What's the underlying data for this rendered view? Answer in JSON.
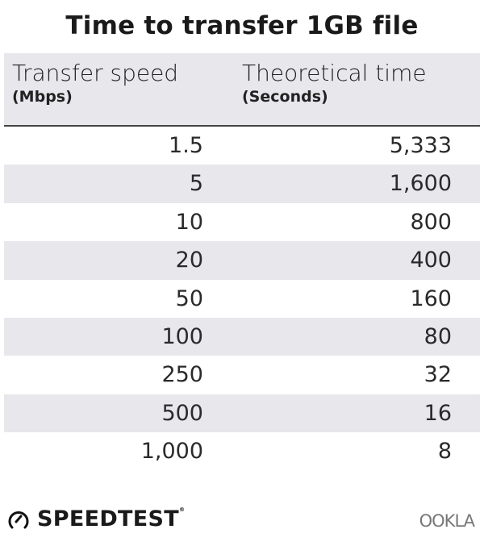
{
  "chart_data": {
    "type": "table",
    "title": "Time to transfer 1GB file",
    "columns": [
      {
        "label": "Transfer speed",
        "unit": "(Mbps)"
      },
      {
        "label": "Theoretical time",
        "unit": "(Seconds)"
      }
    ],
    "rows": [
      [
        "1.5",
        "5,333"
      ],
      [
        "5",
        "1,600"
      ],
      [
        "10",
        "800"
      ],
      [
        "20",
        "400"
      ],
      [
        "50",
        "160"
      ],
      [
        "100",
        "80"
      ],
      [
        "250",
        "32"
      ],
      [
        "500",
        "16"
      ],
      [
        "1,000",
        "8"
      ]
    ],
    "colors": {
      "band": "#e8e7ec",
      "text": "#1a1a1a",
      "divider": "#444444"
    }
  },
  "footer": {
    "left_logo": "SPEEDTEST",
    "left_icon": "gauge-icon",
    "right_logo": "OOKLA"
  }
}
